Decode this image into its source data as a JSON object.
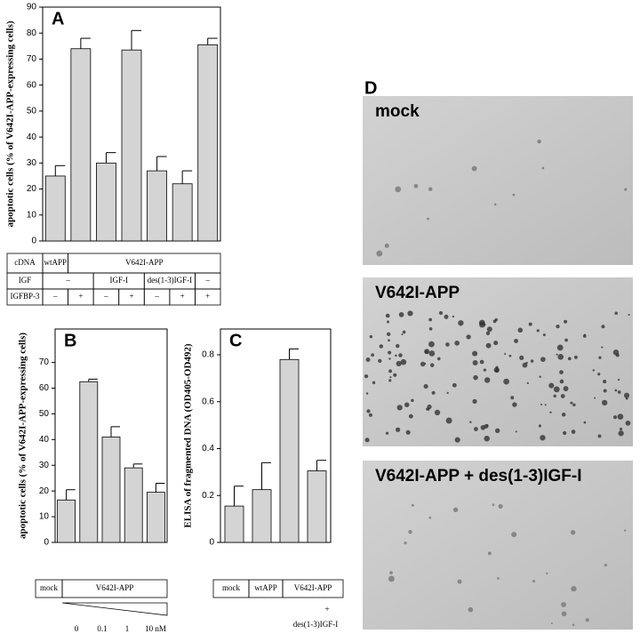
{
  "chart_data": [
    {
      "type": "bar",
      "title": "A",
      "y_label": "apoptotic cells (% of V642I-APP-expressing cells)",
      "values": [
        25,
        74,
        30,
        73.5,
        27,
        22,
        75.5
      ],
      "errors": [
        4,
        4,
        4,
        7.5,
        5.5,
        5,
        2.5
      ],
      "color": "#d4d4d4",
      "ylim": [
        0,
        90
      ],
      "yticks": [
        0,
        10,
        20,
        30,
        40,
        50,
        60,
        70,
        80,
        90
      ]
    },
    {
      "type": "bar",
      "title": "B",
      "y_label": "apoptotic cells (% of V642I-APP-expressing cells)",
      "values": [
        16.5,
        62.5,
        41,
        29,
        19.5
      ],
      "errors": [
        4,
        1,
        4,
        1.5,
        3.5
      ],
      "color": "#d4d4d4",
      "ylim": [
        0,
        83
      ],
      "yticks": [
        0,
        10,
        20,
        30,
        40,
        50,
        60,
        70
      ]
    },
    {
      "type": "bar",
      "title": "C",
      "y_label": "ELISA of fragmented DNA (OD405-OD492)",
      "values": [
        0.155,
        0.225,
        0.78,
        0.305
      ],
      "errors": [
        0.085,
        0.115,
        0.045,
        0.045
      ],
      "color": "#d4d4d4",
      "ylim": [
        0,
        0.91
      ],
      "yticks": [
        0,
        0.2,
        0.4,
        0.6,
        0.8
      ]
    }
  ],
  "table_a": {
    "rows": [
      [
        "cDNA",
        "wtAPP",
        "V642I-APP"
      ],
      [
        "IGF",
        "–",
        "IGF-I",
        "des(1-3)IGF-I",
        "–"
      ],
      [
        "IGFBP-3",
        "–",
        "+",
        "–",
        "+",
        "–",
        "+",
        "+"
      ]
    ]
  },
  "table_b": {
    "cells": [
      "mock",
      "V642I-APP"
    ],
    "doses": [
      "0",
      "0.1",
      "1",
      "10 nM"
    ]
  },
  "table_c": {
    "cells": [
      "mock",
      "wtAPP",
      "V642I-APP"
    ],
    "treatment": [
      "+",
      "des(1-3)IGF-I"
    ]
  },
  "panel_d": {
    "letter": "D",
    "images": [
      "mock",
      "V642I-APP",
      "V642I-APP + des(1-3)IGF-I"
    ]
  }
}
